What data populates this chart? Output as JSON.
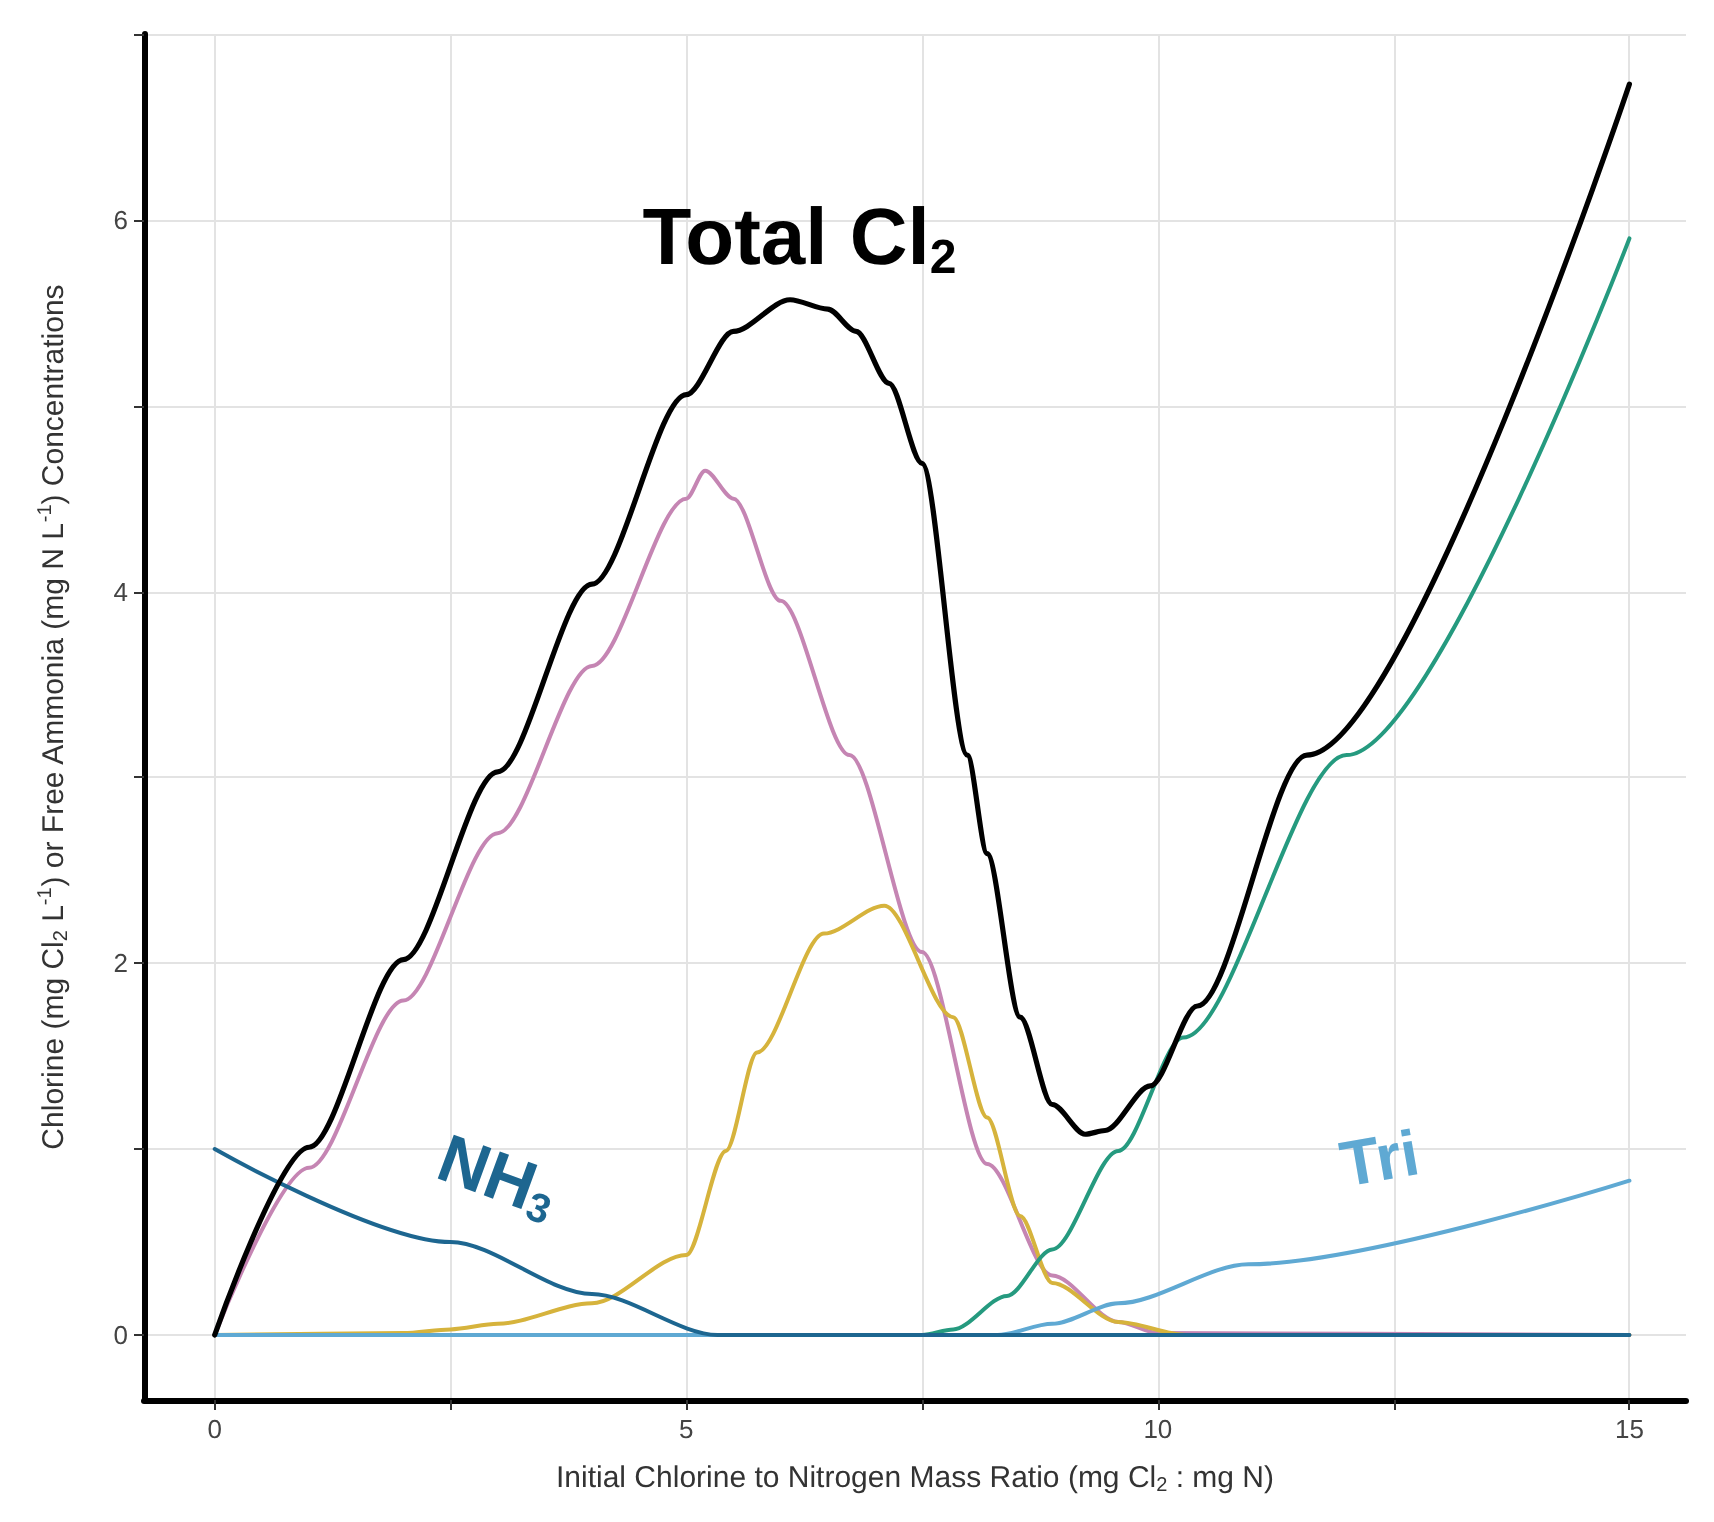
{
  "chart_data": {
    "type": "line",
    "xlabel": "Initial Chlorine to Nitrogen Mass Ratio (mg Cl$_{2}$ : mg N)",
    "ylabel": "Chlorine (mg Cl$_{2}$ L$^{-1}$) or Free Ammonia (mg N L$^{-1}$) Concentrations",
    "xlim": [
      -0.75,
      15.6
    ],
    "ylim": [
      -0.35,
      7
    ],
    "xticks": [
      0,
      {
        "value": 2.5,
        "label": null
      },
      5,
      {
        "value": 7.5,
        "label": null
      },
      10,
      {
        "value": 12.5,
        "label": null
      },
      15
    ],
    "yticks": [
      0,
      {
        "value": 1,
        "label": null
      },
      2,
      {
        "value": 3,
        "label": null
      },
      4,
      {
        "value": 5,
        "label": null
      },
      6,
      {
        "value": 7,
        "label": null
      }
    ],
    "grid": true,
    "marker": "none",
    "line_style": "solid",
    "series": [
      {
        "color": "#c585b3",
        "x": [
          0,
          1,
          2,
          3,
          4,
          5,
          5.2,
          5.5,
          6,
          6.73,
          7.5,
          8.19,
          8.88,
          9.58,
          10,
          15
        ],
        "values": [
          0,
          0.9,
          1.8,
          2.7,
          3.6,
          4.5,
          4.65,
          4.5,
          3.95,
          3.12,
          2.06,
          0.92,
          0.32,
          0.07,
          0.01,
          0
        ]
      },
      {
        "color": "#d6b33c",
        "x": [
          0,
          2,
          2.5,
          3,
          4,
          5,
          5.42,
          5.75,
          6.46,
          7.1,
          7.83,
          8.19,
          8.54,
          8.88,
          9.58,
          10.3,
          15
        ],
        "values": [
          0,
          0.01,
          0.03,
          0.06,
          0.17,
          0.43,
          0.99,
          1.52,
          2.16,
          2.31,
          1.71,
          1.17,
          0.64,
          0.28,
          0.07,
          0,
          0
        ]
      },
      {
        "color": "#259a7f",
        "x": [
          0,
          7.5,
          7.83,
          8.4,
          8.88,
          9.58,
          10.27,
          12,
          15
        ],
        "values": [
          0,
          0,
          0.03,
          0.21,
          0.46,
          0.99,
          1.6,
          3.12,
          5.9
        ]
      },
      {
        "name": "Tri",
        "color": "#5fa9d3",
        "x": [
          0,
          8.3,
          8.88,
          9.58,
          10.96,
          15
        ],
        "values": [
          0,
          0,
          0.06,
          0.17,
          0.38,
          0.83
        ]
      },
      {
        "name": "NH$_{3}$",
        "color": "#1d6690",
        "x": [
          0,
          2.5,
          4,
          5.33,
          15
        ],
        "values": [
          1,
          0.5,
          0.22,
          0,
          0
        ]
      },
      {
        "name": "Total Cl$_{2}$",
        "color": "#000000",
        "x": [
          0,
          1,
          2,
          3,
          4,
          5,
          5.5,
          6.1,
          6.5,
          6.8,
          7.15,
          7.5,
          7.98,
          8.19,
          8.54,
          8.88,
          9.23,
          9.44,
          9.92,
          10.42,
          11.58,
          15
        ],
        "values": [
          0,
          1.01,
          2.02,
          3.03,
          4.04,
          5.06,
          5.4,
          5.57,
          5.52,
          5.4,
          5.12,
          4.69,
          3.12,
          2.59,
          1.71,
          1.24,
          1.08,
          1.1,
          1.34,
          1.77,
          3.12,
          6.73
        ]
      }
    ]
  }
}
